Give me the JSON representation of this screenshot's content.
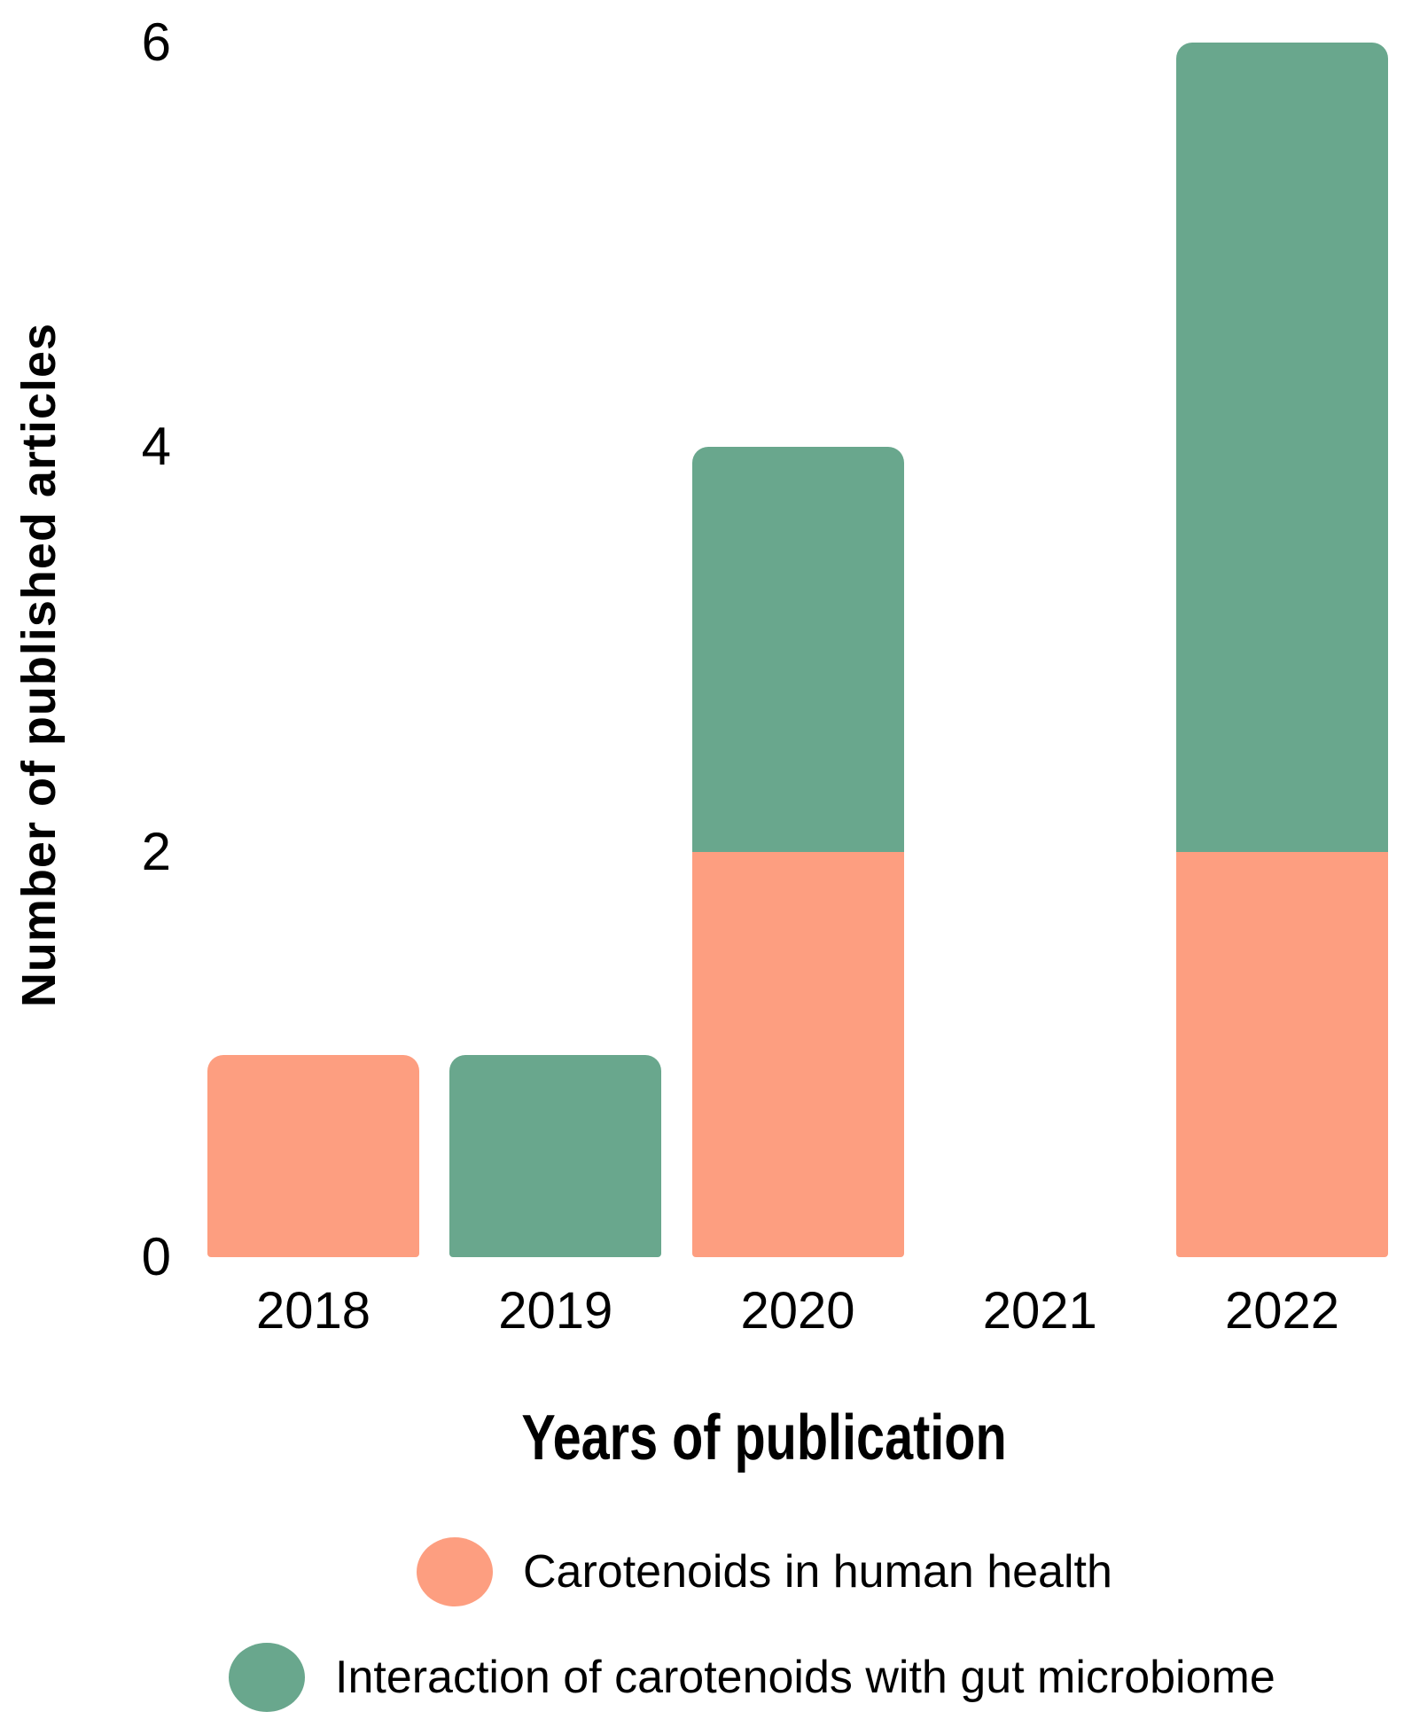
{
  "chart_data": {
    "type": "bar",
    "stacked": true,
    "categories": [
      "2018",
      "2019",
      "2020",
      "2021",
      "2022"
    ],
    "series": [
      {
        "name": "Carotenoids in human health",
        "color": "#FD9E80",
        "values": [
          1,
          0,
          2,
          0,
          2
        ]
      },
      {
        "name": "Interaction of carotenoids with gut microbiome",
        "color": "#69A78D",
        "values": [
          0,
          1,
          2,
          0,
          4
        ]
      }
    ],
    "xlabel": "Years of publication",
    "ylabel": "Number of published articles",
    "yticks": [
      0,
      2,
      4,
      6
    ],
    "ylim": [
      0,
      6
    ],
    "grid": false,
    "axis_lines": false,
    "legend_position": "bottom",
    "background_color": "#ffffff",
    "text_color": "#000000"
  }
}
